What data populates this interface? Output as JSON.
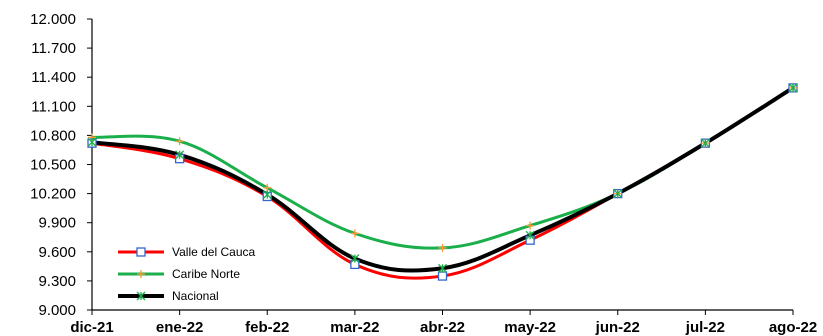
{
  "chart_data": {
    "type": "line",
    "categories": [
      "dic-21",
      "ene-22",
      "feb-22",
      "mar-22",
      "abr-22",
      "may-22",
      "jun-22",
      "jul-22",
      "ago-22"
    ],
    "y_tick_labels": [
      "9.000",
      "9.300",
      "9.600",
      "9.900",
      "10.200",
      "10.500",
      "10.800",
      "11.100",
      "11.400",
      "11.700",
      "12.000"
    ],
    "ylim": [
      9000,
      12000
    ],
    "ytick_step": 300,
    "grid": false,
    "legend_position": "bottom-left",
    "series": [
      {
        "name": "Valle del Cauca",
        "values": [
          10720,
          10560,
          10170,
          9470,
          9350,
          9720,
          10200,
          10720,
          11290
        ],
        "color": "#ff0000",
        "marker": "square",
        "marker_color": "#3366cc"
      },
      {
        "name": "Caribe Norte",
        "values": [
          10780,
          10740,
          10260,
          9790,
          9640,
          9870,
          10200,
          10720,
          11290
        ],
        "color": "#1aaf4b",
        "marker": "plus",
        "marker_color": "#ff9933"
      },
      {
        "name": "Nacional",
        "values": [
          10730,
          10600,
          10190,
          9530,
          9430,
          9770,
          10200,
          10720,
          11290
        ],
        "color": "#000000",
        "marker": "asterisk",
        "marker_color": "#1aaf4b"
      }
    ]
  }
}
